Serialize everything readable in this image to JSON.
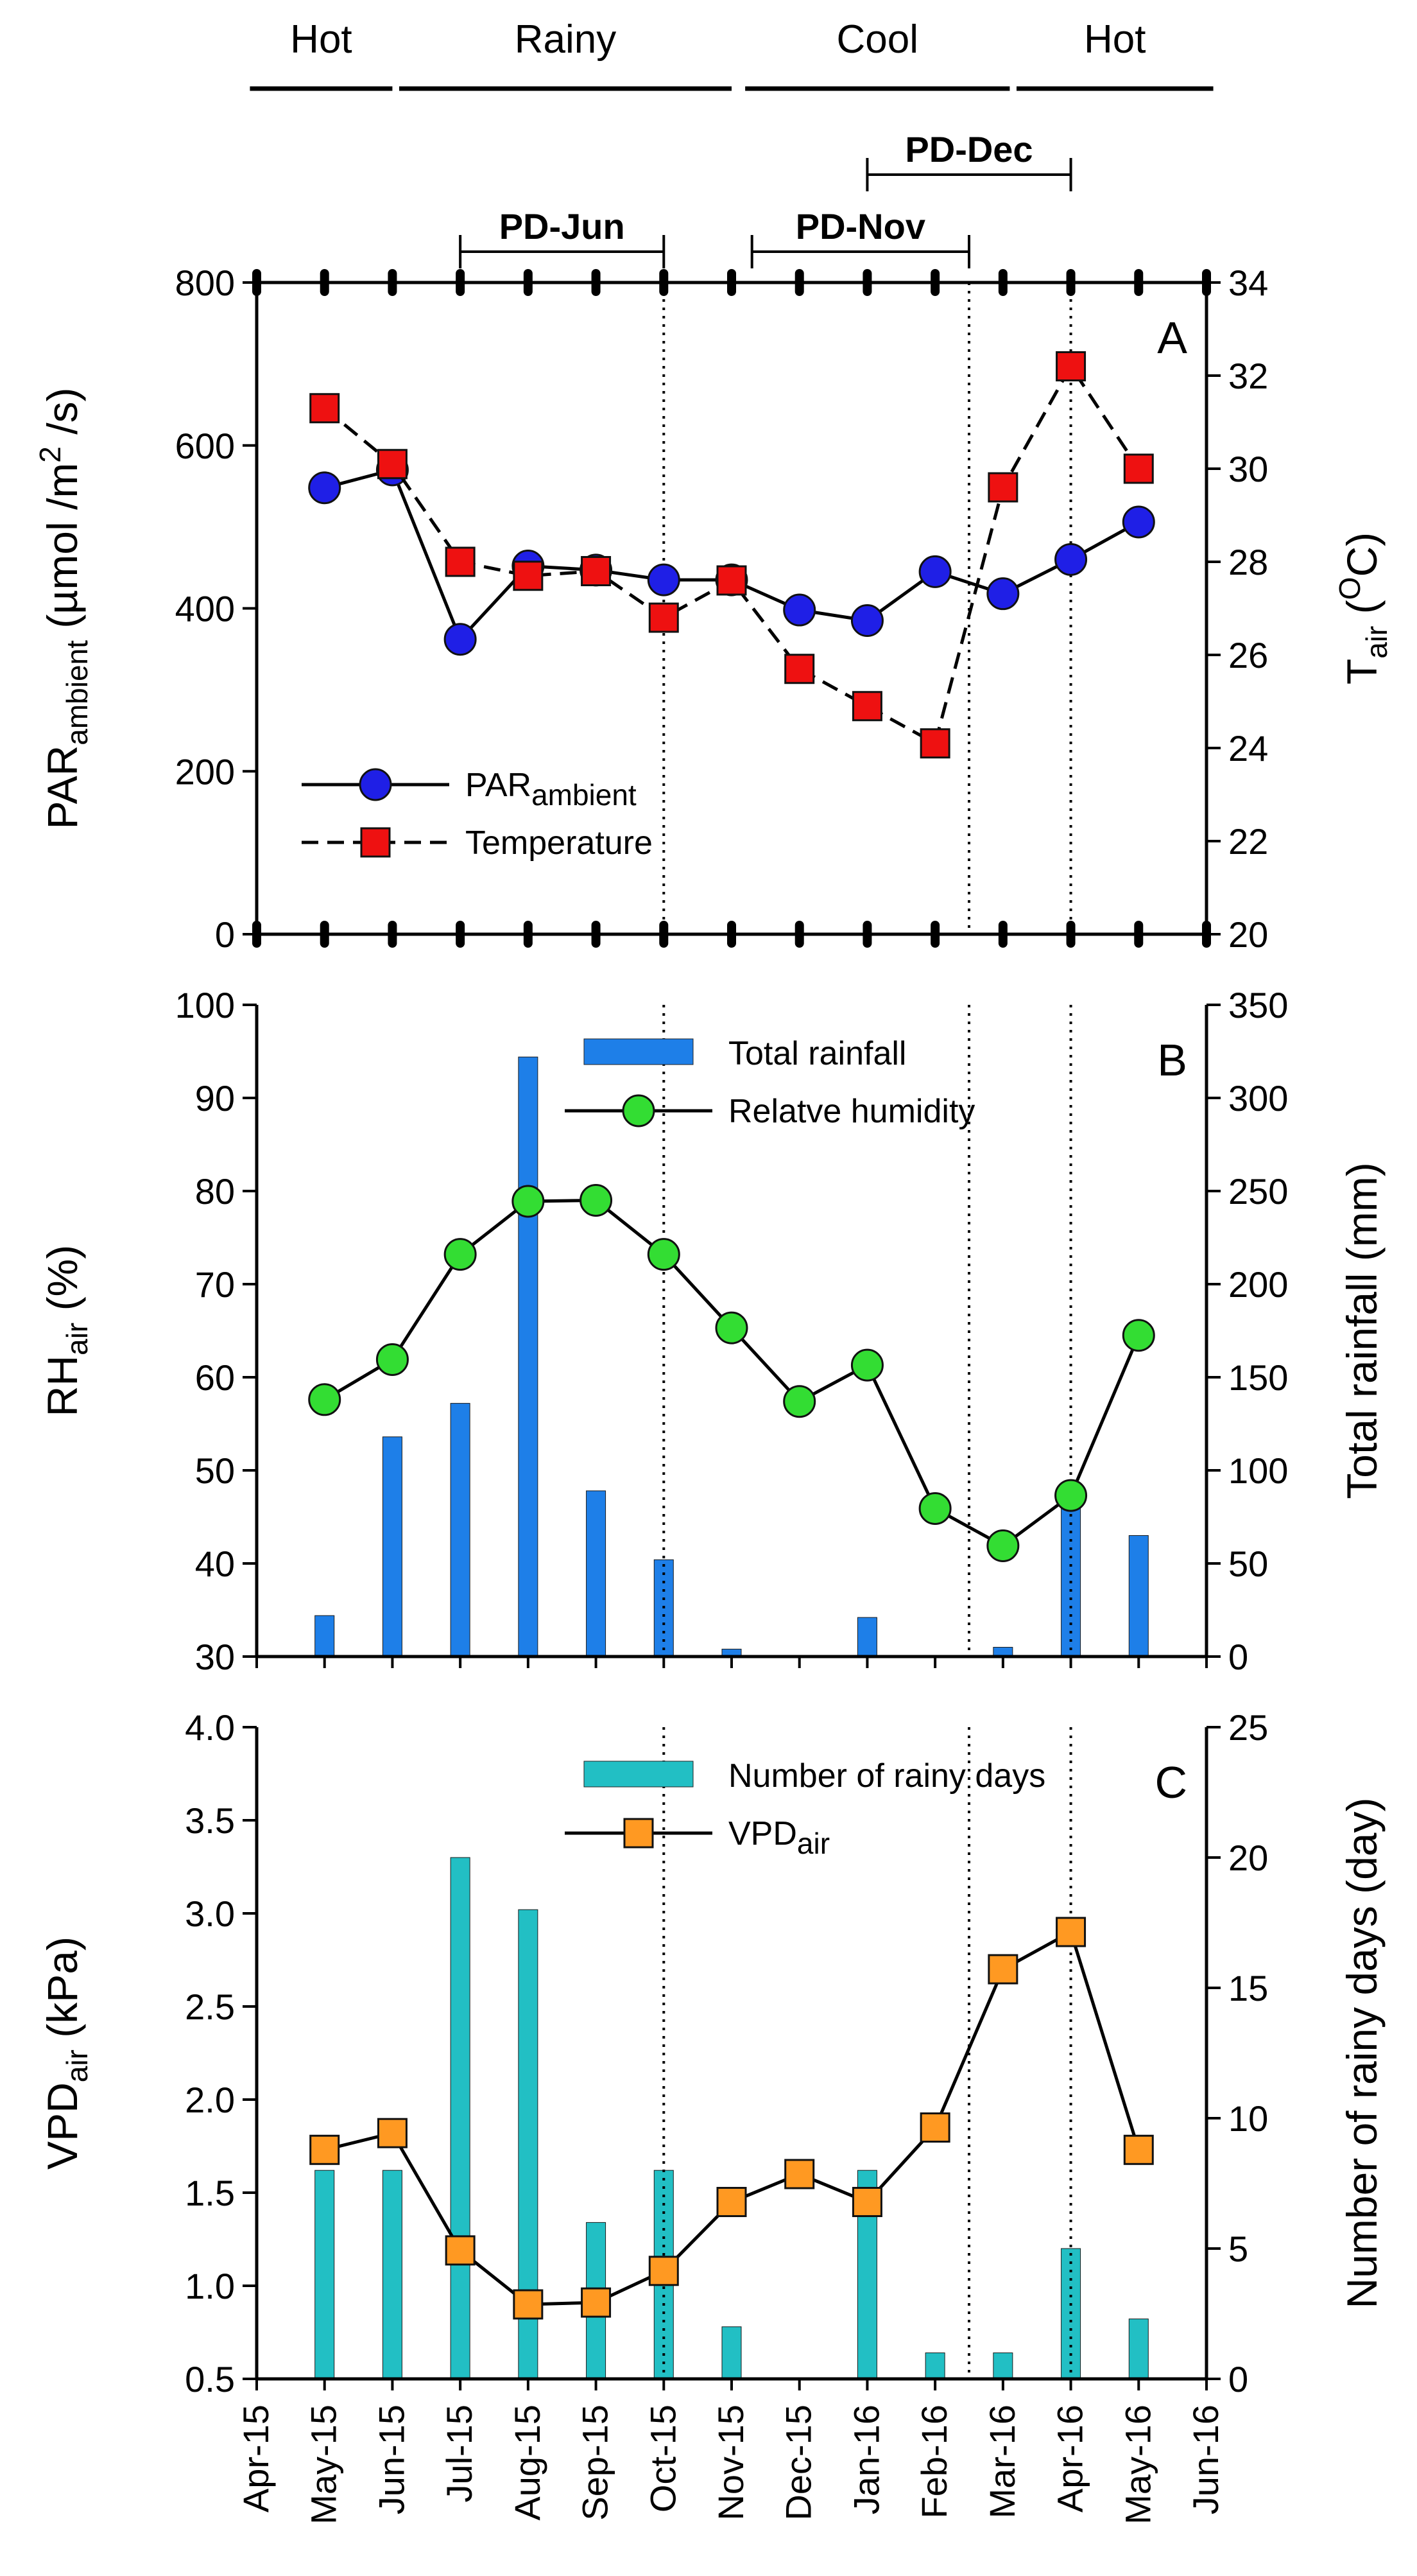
{
  "chart_data": {
    "type": "composite",
    "x_tick_labels": [
      "Apr-15",
      "May-15",
      "Jun-15",
      "Jul-15",
      "Aug-15",
      "Sep-15",
      "Oct-15",
      "Nov-15",
      "Dec-15",
      "Jan-16",
      "Feb-16",
      "Mar-16",
      "Apr-16",
      "May-16",
      "Jun-16"
    ],
    "months": [
      "May-15",
      "Jun-15",
      "Jul-15",
      "Aug-15",
      "Sep-15",
      "Oct-15",
      "Nov-15",
      "Dec-15",
      "Jan-16",
      "Feb-16",
      "Mar-16",
      "Apr-16",
      "May-16"
    ],
    "seasons": [
      {
        "label": "Hot",
        "from": -0.1,
        "to": 2.0
      },
      {
        "label": "Rainy",
        "from": 2.1,
        "to": 7.0
      },
      {
        "label": "Cool",
        "from": 7.2,
        "to": 11.1
      },
      {
        "label": "Hot",
        "from": 11.2,
        "to": 14.1
      }
    ],
    "planting_dates": [
      {
        "label": "PD-Jun",
        "from": 3.0,
        "to": 6.0,
        "level": 1
      },
      {
        "label": "PD-Nov",
        "from": 7.3,
        "to": 10.5,
        "level": 1
      },
      {
        "label": "PD-Dec",
        "from": 9.0,
        "to": 12.0,
        "level": 2
      }
    ],
    "vertical_markers": [
      6.0,
      10.5,
      12.0
    ],
    "panels": [
      {
        "id": "A",
        "letter": "A",
        "left_axis": {
          "label_main": "PAR",
          "label_sub": "ambient",
          "label_tail": " (µmol /m",
          "label_sup": "2",
          "label_end": " /s)",
          "range": [
            0,
            800
          ],
          "ticks": [
            "0",
            "200",
            "400",
            "600",
            "800"
          ]
        },
        "right_axis": {
          "label_main": "T",
          "label_sub": "air",
          "label_tail": " (",
          "label_sup": "O",
          "label_end": "C)",
          "range": [
            20,
            34
          ],
          "ticks": [
            "20",
            "22",
            "24",
            "26",
            "28",
            "30",
            "32",
            "34"
          ]
        },
        "series": [
          {
            "name": "PARambient",
            "legend_main": "PAR",
            "legend_sub": "ambient",
            "axis": "left",
            "style": "line-circle",
            "color": "#1f1fe6",
            "values": [
              548,
              570,
              362,
              452,
              447,
              435,
              435,
              398,
              385,
              445,
              418,
              460,
              506
            ]
          },
          {
            "name": "Temperature",
            "legend_main": "Temperature",
            "axis": "right",
            "style": "dashed-square",
            "color": "#ee1111",
            "values": [
              31.3,
              30.1,
              28.0,
              27.7,
              27.8,
              26.8,
              27.6,
              25.7,
              24.9,
              24.1,
              29.6,
              32.2,
              30.0
            ]
          }
        ]
      },
      {
        "id": "B",
        "letter": "B",
        "left_axis": {
          "label_main": "RH",
          "label_sub": "air",
          "label_tail": " (%)",
          "range": [
            30,
            100
          ],
          "ticks": [
            "30",
            "40",
            "50",
            "60",
            "70",
            "80",
            "90",
            "100"
          ]
        },
        "right_axis": {
          "label_main": "Total rainfall (mm)",
          "range": [
            0,
            350
          ],
          "ticks": [
            "0",
            "50",
            "100",
            "150",
            "200",
            "250",
            "300",
            "350"
          ]
        },
        "series": [
          {
            "name": "Total rainfall",
            "legend_main": "Total rainfall",
            "axis": "right",
            "style": "bar",
            "color": "#1e7fe8",
            "values": [
              22,
              118,
              136,
              322,
              89,
              52,
              4,
              0,
              21,
              0,
              5,
              88,
              65
            ]
          },
          {
            "name": "Relatve humidity",
            "legend_main": "Relatve humidity",
            "axis": "left",
            "style": "line-circle",
            "color": "#33dd33",
            "values": [
              57.6,
              61.9,
              73.2,
              78.9,
              79.0,
              73.2,
              65.3,
              57.4,
              61.3,
              45.9,
              41.9,
              47.3,
              64.5
            ]
          }
        ]
      },
      {
        "id": "C",
        "letter": "C",
        "left_axis": {
          "label_main": "VPD",
          "label_sub": "air",
          "label_tail": " (kPa)",
          "range": [
            0.5,
            4.0
          ],
          "ticks": [
            "0.5",
            "1.0",
            "1.5",
            "2.0",
            "2.5",
            "3.0",
            "3.5",
            "4.0"
          ]
        },
        "right_axis": {
          "label_main": "Number of rainy days (day)",
          "range": [
            0,
            25
          ],
          "ticks": [
            "0",
            "5",
            "10",
            "15",
            "20",
            "25"
          ]
        },
        "series": [
          {
            "name": "Number of rainy days",
            "legend_main": "Number of rainy days",
            "axis": "right",
            "style": "bar",
            "color": "#22bfc4",
            "values": [
              8,
              8,
              20,
              18,
              6,
              8,
              2,
              0,
              8,
              1,
              1,
              5,
              2.3
            ]
          },
          {
            "name": "VPDair",
            "legend_main": "VPD",
            "legend_sub": "air",
            "axis": "left",
            "style": "line-square",
            "color": "#ff9922",
            "values": [
              1.73,
              1.82,
              1.19,
              0.9,
              0.91,
              1.08,
              1.45,
              1.6,
              1.45,
              1.85,
              2.7,
              2.9,
              1.73
            ]
          }
        ]
      }
    ]
  }
}
